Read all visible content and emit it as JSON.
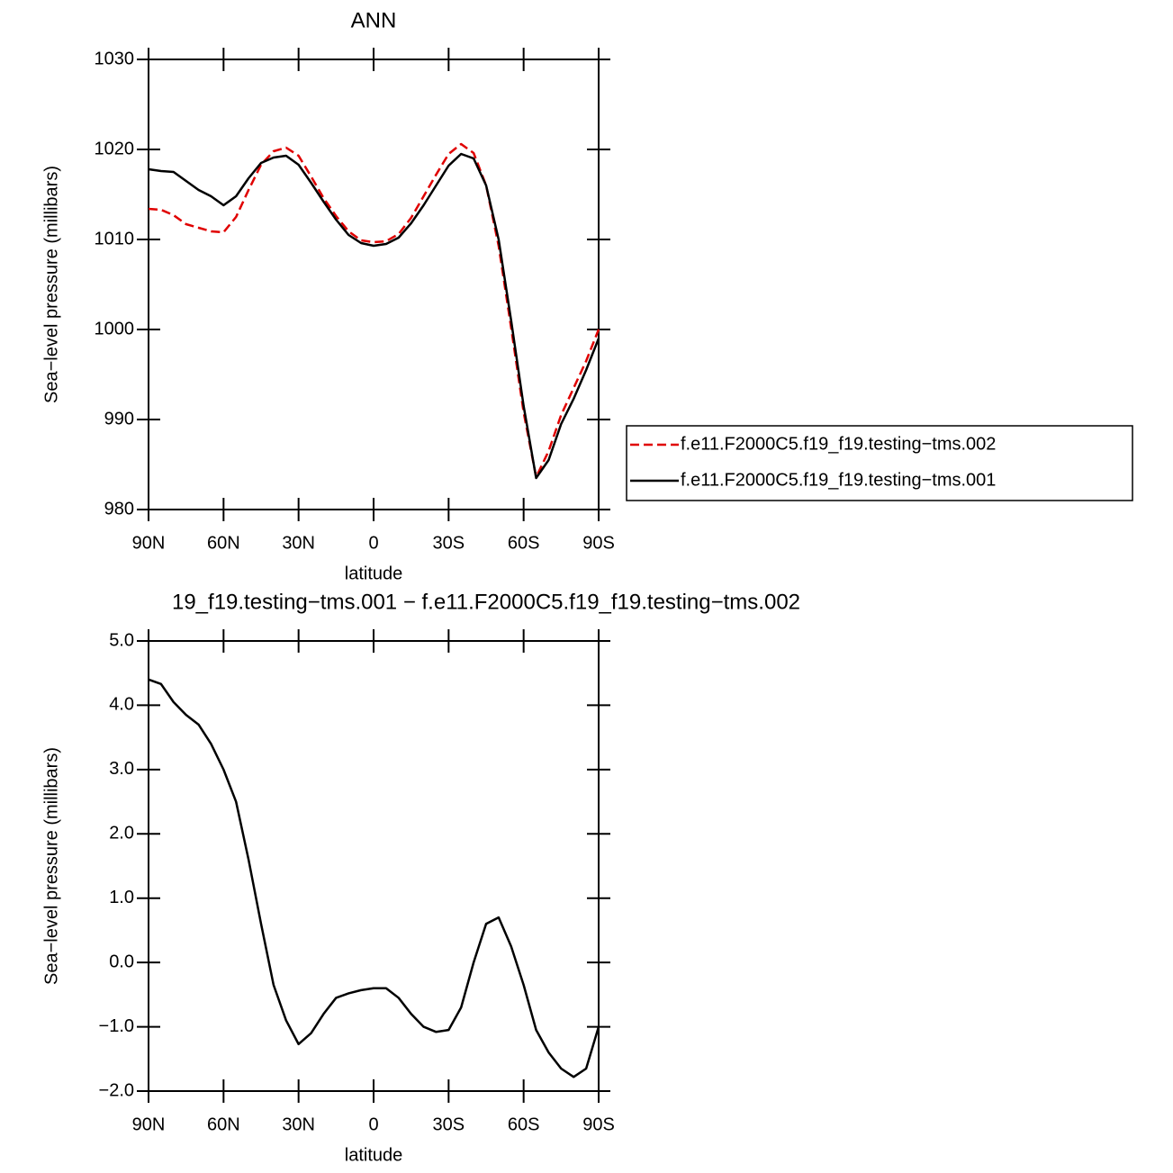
{
  "chart_data": [
    {
      "type": "line",
      "title": "ANN",
      "xlabel": "latitude",
      "ylabel": "Sea−level pressure (millibars)",
      "x": [
        90,
        85,
        80,
        75,
        70,
        65,
        60,
        55,
        50,
        45,
        40,
        35,
        30,
        25,
        20,
        15,
        10,
        5,
        0,
        -5,
        -10,
        -15,
        -20,
        -25,
        -30,
        -35,
        -40,
        -45,
        -50,
        -55,
        -60,
        -65,
        -70,
        -75,
        -80,
        -85,
        -90
      ],
      "xlim": [
        90,
        -90
      ],
      "xticks": [
        {
          "value": 90,
          "label": "90N"
        },
        {
          "value": 60,
          "label": "60N"
        },
        {
          "value": 30,
          "label": "30N"
        },
        0,
        {
          "value": -30,
          "label": "30S"
        },
        {
          "value": -60,
          "label": "60S"
        },
        {
          "value": -90,
          "label": "90S"
        }
      ],
      "ylim": [
        980,
        1030
      ],
      "yticks": [
        980,
        990,
        1000,
        1010,
        1020,
        1030
      ],
      "series": [
        {
          "name": "f.e11.F2000C5.f19_f19.testing−tms.002",
          "color": "#e00000",
          "dash": true,
          "values": [
            1013.4,
            1013.3,
            1012.7,
            1011.7,
            1011.3,
            1010.9,
            1010.8,
            1012.5,
            1015.5,
            1018.3,
            1019.8,
            1020.2,
            1019.3,
            1017.0,
            1014.6,
            1012.6,
            1010.9,
            1009.9,
            1009.7,
            1009.8,
            1010.6,
            1012.4,
            1014.8,
            1017.2,
            1019.5,
            1020.6,
            1019.6,
            1016.0,
            1009.3,
            1000.2,
            990.8,
            983.6,
            986.5,
            990.5,
            993.5,
            996.5,
            1000.0
          ]
        },
        {
          "name": "f.e11.F2000C5.f19_f19.testing−tms.001",
          "color": "#000000",
          "dash": false,
          "values": [
            1017.8,
            1017.6,
            1017.5,
            1016.5,
            1015.5,
            1014.8,
            1013.8,
            1014.8,
            1016.8,
            1018.5,
            1019.1,
            1019.3,
            1018.3,
            1016.3,
            1014.2,
            1012.2,
            1010.5,
            1009.6,
            1009.3,
            1009.5,
            1010.2,
            1011.8,
            1013.8,
            1016.0,
            1018.2,
            1019.5,
            1019.0,
            1016.0,
            1010.0,
            1001.0,
            991.5,
            983.5,
            985.5,
            989.5,
            992.3,
            995.5,
            999.0
          ]
        }
      ]
    },
    {
      "type": "line",
      "title": "19_f19.testing−tms.001 − f.e11.F2000C5.f19_f19.testing−tms.002",
      "xlabel": "latitude",
      "ylabel": "Sea−level pressure (millibars)",
      "x": [
        90,
        85,
        80,
        75,
        70,
        65,
        60,
        55,
        50,
        45,
        40,
        35,
        30,
        25,
        20,
        15,
        10,
        5,
        0,
        -5,
        -10,
        -15,
        -20,
        -25,
        -30,
        -35,
        -40,
        -45,
        -50,
        -55,
        -60,
        -65,
        -70,
        -75,
        -80,
        -85,
        -90
      ],
      "xlim": [
        90,
        -90
      ],
      "xticks": [
        {
          "value": 90,
          "label": "90N"
        },
        {
          "value": 60,
          "label": "60N"
        },
        {
          "value": 30,
          "label": "30N"
        },
        0,
        {
          "value": -30,
          "label": "30S"
        },
        {
          "value": -60,
          "label": "60S"
        },
        {
          "value": -90,
          "label": "90S"
        }
      ],
      "ylim": [
        -2,
        5
      ],
      "yticks": [
        {
          "value": -2,
          "label": "−2.0"
        },
        {
          "value": -1,
          "label": "−1.0"
        },
        {
          "value": 0,
          "label": "0.0"
        },
        {
          "value": 1,
          "label": "1.0"
        },
        {
          "value": 2,
          "label": "2.0"
        },
        {
          "value": 3,
          "label": "3.0"
        },
        {
          "value": 4,
          "label": "4.0"
        },
        {
          "value": 5,
          "label": "5.0"
        }
      ],
      "series": [
        {
          "color": "#000000",
          "dash": false,
          "values": [
            4.4,
            4.33,
            4.05,
            3.85,
            3.7,
            3.4,
            3.0,
            2.5,
            1.6,
            0.6,
            -0.35,
            -0.9,
            -1.27,
            -1.1,
            -0.8,
            -0.55,
            -0.48,
            -0.43,
            -0.4,
            -0.4,
            -0.55,
            -0.8,
            -1.0,
            -1.08,
            -1.05,
            -0.7,
            0.0,
            0.6,
            0.7,
            0.25,
            -0.35,
            -1.05,
            -1.4,
            -1.65,
            -1.78,
            -1.65,
            -1.0
          ]
        }
      ]
    }
  ]
}
